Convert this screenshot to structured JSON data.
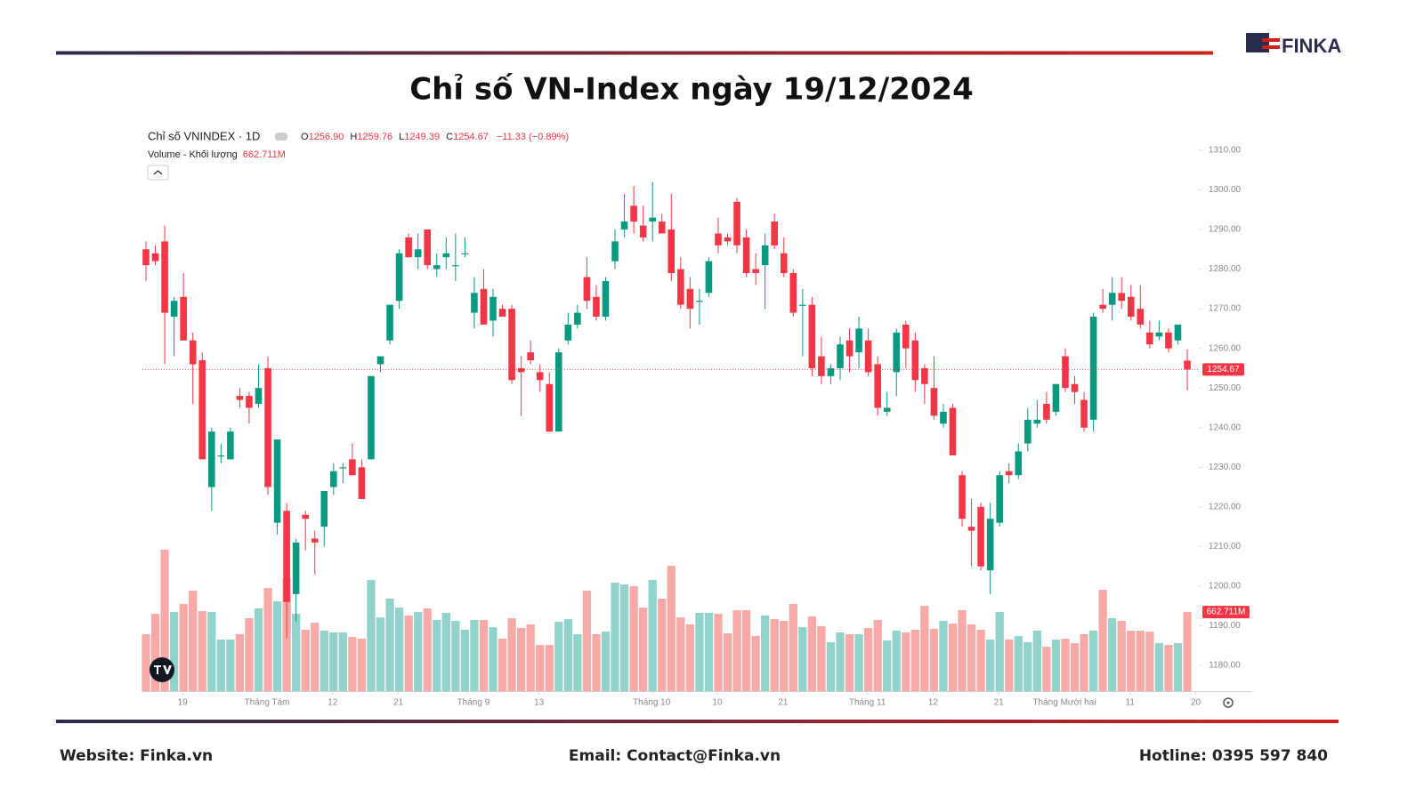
{
  "brand": "FINKA",
  "footer": {
    "website": "Website: Finka.vn",
    "email": "Email: Contact@Finka.vn",
    "hotline": "Hotline: 0395 597 840"
  },
  "chart_data": {
    "type": "candlestick",
    "title": "Chỉ số VN-Index ngày 19/12/2024",
    "legend": {
      "symbol": "Chỉ số VNINDEX · 1D",
      "o": "O",
      "open": "1256.90",
      "h": "H",
      "high": "1259.76",
      "l": "L",
      "low": "1249.39",
      "c": "C",
      "close": "1254.67",
      "change": "−11.33 (−0.89%)",
      "volume_name": "Volume - Khối lượng",
      "volume": "662.711M"
    },
    "up_color": "#089981",
    "down_color": "#f23645",
    "volume_up_color": "#92d2cc",
    "volume_down_color": "#f7a9a7",
    "ylim": [
      1173.5,
      1312
    ],
    "yticks": [
      {
        "value": 1180,
        "label": "1180.00"
      },
      {
        "value": 1190,
        "label": "1190.00"
      },
      {
        "value": 1200,
        "label": "1200.00"
      },
      {
        "value": 1210,
        "label": "1210.00"
      },
      {
        "value": 1220,
        "label": "1220.00"
      },
      {
        "value": 1230,
        "label": "1230.00"
      },
      {
        "value": 1240,
        "label": "1240.00"
      },
      {
        "value": 1250,
        "label": "1250.00"
      },
      {
        "value": 1260,
        "label": "1260.00"
      },
      {
        "value": 1270,
        "label": "1270.00"
      },
      {
        "value": 1280,
        "label": "1280.00"
      },
      {
        "value": 1290,
        "label": "1290.00"
      },
      {
        "value": 1300,
        "label": "1300.00"
      },
      {
        "value": 1310,
        "label": "1310.00"
      }
    ],
    "xticks": [
      {
        "value": 4,
        "label": "19"
      },
      {
        "value": 13,
        "label": "Tháng Tám"
      },
      {
        "value": 20,
        "label": "12"
      },
      {
        "value": 27,
        "label": "21"
      },
      {
        "value": 35,
        "label": "Tháng 9"
      },
      {
        "value": 42,
        "label": "13"
      },
      {
        "value": 54,
        "label": "Tháng 10"
      },
      {
        "value": 61,
        "label": "10"
      },
      {
        "value": 68,
        "label": "21"
      },
      {
        "value": 77,
        "label": "Tháng 11"
      },
      {
        "value": 84,
        "label": "12"
      },
      {
        "value": 91,
        "label": "21"
      },
      {
        "value": 98,
        "label": "Tháng Mười hai"
      },
      {
        "value": 105,
        "label": "11"
      },
      {
        "value": 112,
        "label": "20"
      }
    ],
    "ohlc": [
      [
        1285,
        1287,
        1277,
        1281
      ],
      [
        1284,
        1286,
        1281,
        1282
      ],
      [
        1287,
        1291,
        1256,
        1269
      ],
      [
        1268,
        1273,
        1258,
        1272
      ],
      [
        1273,
        1279,
        1262,
        1262
      ],
      [
        1262,
        1264,
        1246,
        1256
      ],
      [
        1257,
        1259,
        1232,
        1232
      ],
      [
        1225,
        1240,
        1219,
        1239
      ],
      [
        1233,
        1236,
        1231,
        1233
      ],
      [
        1232,
        1240,
        1232,
        1239
      ],
      [
        1248,
        1250,
        1245,
        1247
      ],
      [
        1248,
        1249,
        1241,
        1245
      ],
      [
        1246,
        1256,
        1245,
        1250
      ],
      [
        1255,
        1258,
        1223,
        1225
      ],
      [
        1216,
        1237,
        1213,
        1237
      ],
      [
        1219,
        1221,
        1187,
        1196
      ],
      [
        1198,
        1212,
        1191,
        1211
      ],
      [
        1218,
        1219,
        1209,
        1217
      ],
      [
        1212,
        1214,
        1203,
        1211
      ],
      [
        1215,
        1224,
        1210,
        1224
      ],
      [
        1225,
        1231,
        1223,
        1229
      ],
      [
        1230,
        1231,
        1226,
        1230
      ],
      [
        1232,
        1236,
        1228,
        1228
      ],
      [
        1230,
        1232,
        1222,
        1222
      ],
      [
        1232,
        1253,
        1232,
        1253
      ],
      [
        1256,
        1258,
        1254,
        1258
      ],
      [
        1262,
        1271,
        1261,
        1271
      ],
      [
        1272,
        1285,
        1270,
        1284
      ],
      [
        1288,
        1289,
        1283,
        1283
      ],
      [
        1283,
        1289,
        1280,
        1285
      ],
      [
        1290,
        1290,
        1280,
        1281
      ],
      [
        1280,
        1284,
        1278,
        1281
      ],
      [
        1283,
        1288,
        1280,
        1284
      ],
      [
        1281,
        1289,
        1277,
        1281
      ],
      [
        1284,
        1288,
        1283,
        1284
      ],
      [
        1269,
        1278,
        1265,
        1274
      ],
      [
        1275,
        1280,
        1266,
        1266
      ],
      [
        1267,
        1275,
        1263,
        1273
      ],
      [
        1270,
        1271,
        1268,
        1268
      ],
      [
        1270,
        1271,
        1251,
        1252
      ],
      [
        1255,
        1258,
        1243,
        1254
      ],
      [
        1259,
        1262,
        1256,
        1257
      ],
      [
        1254,
        1256,
        1249,
        1252
      ],
      [
        1251,
        1254,
        1239,
        1239
      ],
      [
        1239,
        1260,
        1239,
        1259
      ],
      [
        1262,
        1269,
        1261,
        1266
      ],
      [
        1266,
        1271,
        1265,
        1269
      ],
      [
        1278,
        1283,
        1270,
        1272
      ],
      [
        1273,
        1276,
        1267,
        1268
      ],
      [
        1268,
        1278,
        1267,
        1277
      ],
      [
        1282,
        1290,
        1280,
        1287
      ],
      [
        1290,
        1299,
        1288,
        1292
      ],
      [
        1296,
        1301,
        1289,
        1292
      ],
      [
        1291,
        1296,
        1287,
        1288
      ],
      [
        1292,
        1302,
        1287,
        1293
      ],
      [
        1292,
        1294,
        1289,
        1289
      ],
      [
        1290,
        1299,
        1277,
        1279
      ],
      [
        1280,
        1283,
        1270,
        1271
      ],
      [
        1275,
        1278,
        1265,
        1270
      ],
      [
        1272,
        1275,
        1266,
        1272
      ],
      [
        1274,
        1283,
        1273,
        1282
      ],
      [
        1289,
        1293,
        1284,
        1286
      ],
      [
        1288,
        1289,
        1286,
        1287
      ],
      [
        1297,
        1298,
        1284,
        1286
      ],
      [
        1288,
        1290,
        1278,
        1279
      ],
      [
        1280,
        1284,
        1276,
        1279
      ],
      [
        1281,
        1289,
        1270,
        1286
      ],
      [
        1292,
        1294,
        1285,
        1286
      ],
      [
        1284,
        1288,
        1278,
        1279
      ],
      [
        1279,
        1280,
        1268,
        1269
      ],
      [
        1271,
        1275,
        1258,
        1271
      ],
      [
        1271,
        1273,
        1253,
        1255
      ],
      [
        1258,
        1263,
        1251,
        1253
      ],
      [
        1253,
        1256,
        1251,
        1255
      ],
      [
        1255,
        1263,
        1252,
        1261
      ],
      [
        1262,
        1265,
        1254,
        1258
      ],
      [
        1259,
        1268,
        1255,
        1265
      ],
      [
        1262,
        1265,
        1253,
        1254
      ],
      [
        1256,
        1258,
        1243,
        1245
      ],
      [
        1244,
        1249,
        1243,
        1245
      ],
      [
        1254,
        1265,
        1248,
        1264
      ],
      [
        1266,
        1267,
        1255,
        1260
      ],
      [
        1262,
        1264,
        1249,
        1252
      ],
      [
        1255,
        1256,
        1246,
        1251
      ],
      [
        1250,
        1258,
        1242,
        1243
      ],
      [
        1241,
        1246,
        1240,
        1244
      ],
      [
        1245,
        1246,
        1233,
        1233
      ],
      [
        1228,
        1229,
        1215,
        1217
      ],
      [
        1215,
        1222,
        1205,
        1214
      ],
      [
        1220,
        1221,
        1204,
        1205
      ],
      [
        1204,
        1221,
        1198,
        1217
      ],
      [
        1216,
        1229,
        1215,
        1228
      ],
      [
        1229,
        1231,
        1226,
        1228
      ],
      [
        1228,
        1236,
        1227,
        1234
      ],
      [
        1236,
        1245,
        1234,
        1242
      ],
      [
        1241,
        1247,
        1240,
        1242
      ],
      [
        1246,
        1249,
        1241,
        1242
      ],
      [
        1244,
        1251,
        1243,
        1251
      ],
      [
        1258,
        1260,
        1249,
        1250
      ],
      [
        1251,
        1253,
        1246,
        1249
      ],
      [
        1247,
        1249,
        1239,
        1240
      ],
      [
        1242,
        1269,
        1239,
        1268
      ],
      [
        1271,
        1275,
        1269,
        1270
      ],
      [
        1271,
        1278,
        1267,
        1274
      ],
      [
        1274,
        1278,
        1270,
        1272
      ],
      [
        1273,
        1276,
        1267,
        1268
      ],
      [
        1270,
        1276,
        1265,
        1266
      ],
      [
        1264,
        1267,
        1260,
        1261
      ],
      [
        1263,
        1267,
        1262,
        1264
      ],
      [
        1264,
        1265,
        1259,
        1260
      ],
      [
        1262,
        1266,
        1261,
        1266
      ],
      [
        1256.9,
        1259.76,
        1249.39,
        1254.67
      ]
    ],
    "volume": [
      477,
      648,
      1185,
      663,
      730,
      842,
      670,
      663,
      432,
      432,
      477,
      611,
      693,
      864,
      752,
      946,
      648,
      514,
      573,
      507,
      492,
      492,
      454,
      440,
      931,
      618,
      775,
      700,
      633,
      663,
      693,
      596,
      656,
      589,
      514,
      596,
      596,
      536,
      440,
      611,
      529,
      559,
      387,
      387,
      581,
      603,
      477,
      842,
      477,
      499,
      909,
      894,
      879,
      700,
      931,
      775,
      1050,
      618,
      559,
      656,
      656,
      648,
      484,
      678,
      678,
      462,
      633,
      603,
      589,
      730,
      536,
      626,
      544,
      410,
      492,
      477,
      477,
      529,
      596,
      425,
      507,
      492,
      514,
      715,
      522,
      589,
      566,
      678,
      559,
      514,
      432,
      663,
      432,
      462,
      410,
      507,
      372,
      432,
      440,
      402,
      477,
      507,
      849,
      611,
      589,
      507,
      507,
      499,
      402,
      387,
      402,
      662.711
    ]
  }
}
